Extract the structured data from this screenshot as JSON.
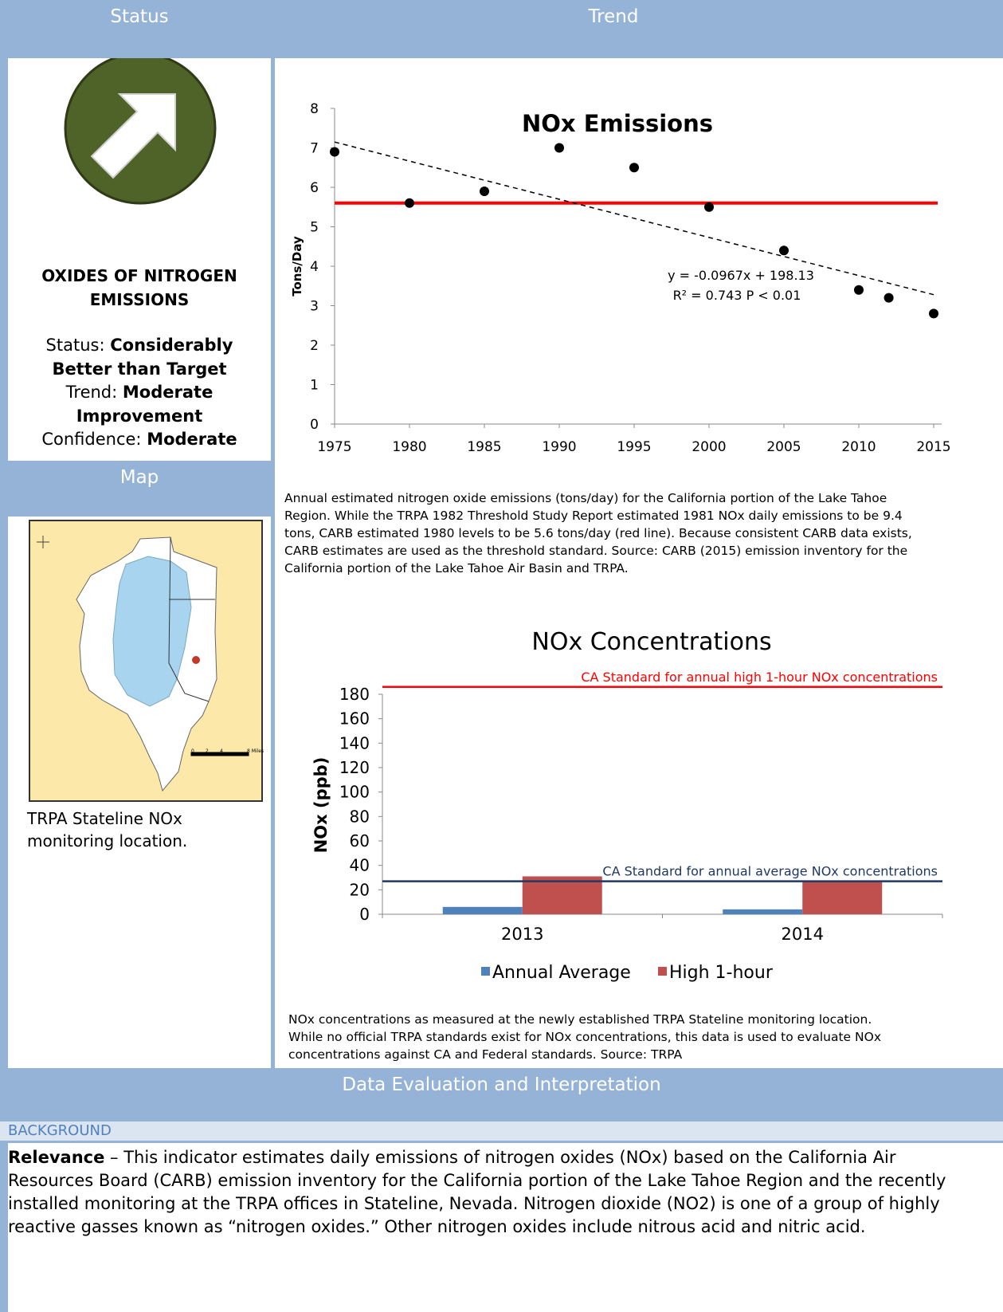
{
  "header": {
    "status": "Status",
    "trend": "Trend"
  },
  "status_panel": {
    "indicator": "OXIDES OF NITROGEN EMISSIONS",
    "status_label": "Status:",
    "status": "Considerably Better than Target",
    "trend_label": "Trend:",
    "trend": "Moderate Improvement",
    "confidence_label": "Confidence:",
    "confidence": "Moderate"
  },
  "map": {
    "heading": "Map",
    "caption": "TRPA Stateline NOx monitoring location.",
    "scale_labels": [
      "0",
      "2",
      "4",
      "8 Miles"
    ]
  },
  "chart_data": [
    {
      "type": "scatter",
      "title": "NOx Emissions",
      "y_label": "Tons/Day",
      "x": [
        1975,
        1980,
        1985,
        1990,
        1995,
        2000,
        2005,
        2010,
        2012,
        2015
      ],
      "values": [
        6.9,
        5.6,
        5.9,
        7.0,
        6.5,
        5.5,
        4.4,
        3.4,
        3.2,
        2.8
      ],
      "color": "#000000",
      "xlim": [
        1975,
        2015
      ],
      "xticks": [
        1975,
        1980,
        1985,
        1990,
        1995,
        2000,
        2005,
        2010,
        2015
      ],
      "ylim": [
        0,
        8
      ],
      "yticks": [
        0,
        1,
        2,
        3,
        4,
        5,
        6,
        7,
        8
      ],
      "threshold": {
        "value": 5.6,
        "color": "#ff0000"
      },
      "trendline": {
        "slope": -0.0967,
        "intercept": 198.13,
        "color": "#000000",
        "label": "y = -0.0967x + 198.13",
        "r2_label": "R² = 0.743 P < 0.01"
      }
    },
    {
      "type": "bar",
      "title": "NOx Concentrations",
      "y_label": "NOx (ppb)",
      "categories": [
        "2013",
        "2014"
      ],
      "series": [
        {
          "name": "Annual Average",
          "color": "#4f81bd",
          "values": [
            6,
            4
          ]
        },
        {
          "name": "High 1-hour",
          "color": "#c0504d",
          "values": [
            31,
            27
          ]
        }
      ],
      "ylim": [
        0,
        180
      ],
      "yticks": [
        0,
        20,
        40,
        60,
        80,
        100,
        120,
        140,
        160,
        180
      ],
      "reference_lines": [
        {
          "value": 186,
          "label": "CA Standard for annual high 1-hour NOx concentrations",
          "color": "#ff0000"
        },
        {
          "value": 27,
          "label": "CA Standard for annual average NOx concentrations",
          "color": "#1f3864"
        }
      ],
      "legend": "bottom"
    }
  ],
  "captions": [
    "Annual estimated nitrogen oxide emissions (tons/day) for the California portion of the Lake Tahoe Region. While the TRPA 1982 Threshold Study Report estimated 1981 NOx daily emissions to be 9.4 tons, CARB estimated 1980 levels to be 5.6 tons/day (red line). Because consistent CARB data exists, CARB estimates are used as the threshold standard. Source: CARB (2015) emission inventory for the California portion of the Lake Tahoe Air Basin and TRPA.",
    "NOx concentrations as measured at the newly established TRPA Stateline monitoring location. While no official TRPA standards exist for NOx concentrations, this data is used to evaluate NOx concentrations against CA and Federal standards.  Source: TRPA"
  ],
  "section": {
    "heading": "Data Evaluation and Interpretation",
    "subheading": "BACKGROUND",
    "relevance_label": "Relevance",
    "relevance_text": "– This indicator estimates daily emissions of nitrogen oxides (NOx) based on the California Air Resources Board (CARB) emission inventory for the California portion of the Lake Tahoe Region and the recently installed monitoring at the TRPA offices in Stateline, Nevada.  Nitrogen dioxide (NO2) is one of a group of highly reactive gasses known as “nitrogen oxides.” Other nitrogen oxides include nitrous acid and nitric acid."
  }
}
